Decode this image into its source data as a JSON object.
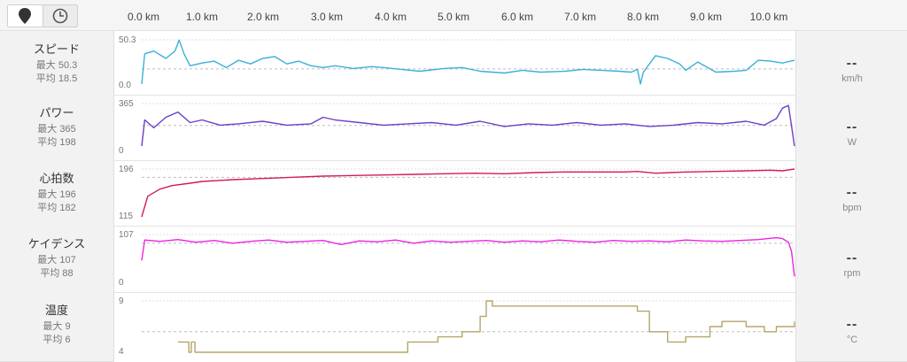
{
  "toolbar": {
    "map_icon": "map-pin-icon",
    "time_icon": "clock-icon"
  },
  "distance_axis": [
    "0.0 km",
    "1.0 km",
    "2.0 km",
    "3.0 km",
    "4.0 km",
    "5.0 km",
    "6.0 km",
    "7.0 km",
    "8.0 km",
    "9.0 km",
    "10.0 km"
  ],
  "rows": [
    {
      "id": "speed",
      "name": "スピード",
      "max_label": "最大 50.3",
      "avg_label": "平均 18.5",
      "current": "--",
      "unit": "km/h",
      "tick_top": "50.3",
      "tick_bottom": "0.0",
      "color": "#3ab0d8"
    },
    {
      "id": "power",
      "name": "パワー",
      "max_label": "最大 365",
      "avg_label": "平均 198",
      "current": "--",
      "unit": "W",
      "tick_top": "365",
      "tick_bottom": "0",
      "color": "#6a3fc8"
    },
    {
      "id": "heartrate",
      "name": "心拍数",
      "max_label": "最大 196",
      "avg_label": "平均 182",
      "current": "--",
      "unit": "bpm",
      "tick_top": "196",
      "tick_bottom": "115",
      "color": "#d21a5c"
    },
    {
      "id": "cadence",
      "name": "ケイデンス",
      "max_label": "最大 107",
      "avg_label": "平均 88",
      "current": "--",
      "unit": "rpm",
      "tick_top": "107",
      "tick_bottom": "0",
      "color": "#ee22e0"
    },
    {
      "id": "temperature",
      "name": "温度",
      "max_label": "最大 9",
      "avg_label": "平均 6",
      "current": "--",
      "unit": "°C",
      "tick_top": "9",
      "tick_bottom": "4",
      "color": "#b5a56a"
    }
  ],
  "chart_data": {
    "type": "line",
    "x_label": "km",
    "x_range": [
      0,
      10.8
    ],
    "series": [
      {
        "name": "スピード",
        "ylim": [
          0,
          50.3
        ],
        "avg": 18.5,
        "x": [
          0,
          0.05,
          0.2,
          0.4,
          0.55,
          0.62,
          0.7,
          0.8,
          1.0,
          1.2,
          1.4,
          1.6,
          1.8,
          2.0,
          2.2,
          2.4,
          2.6,
          2.8,
          3.0,
          3.2,
          3.5,
          3.8,
          4.0,
          4.3,
          4.6,
          5.0,
          5.3,
          5.6,
          6.0,
          6.3,
          6.6,
          7.0,
          7.3,
          7.6,
          7.9,
          8.1,
          8.2,
          8.25,
          8.3,
          8.5,
          8.7,
          8.9,
          9.0,
          9.2,
          9.5,
          9.8,
          10.0,
          10.2,
          10.4,
          10.6,
          10.8
        ],
        "y": [
          2,
          35,
          38,
          30,
          38,
          50,
          35,
          22,
          25,
          27,
          20,
          28,
          24,
          30,
          32,
          24,
          27,
          22,
          20,
          22,
          19,
          21,
          20,
          18,
          16,
          19,
          20,
          16,
          14,
          17,
          15,
          16,
          18,
          17,
          16,
          15,
          18,
          2,
          15,
          33,
          30,
          24,
          17,
          26,
          15,
          16,
          17,
          28,
          27,
          25,
          28
        ]
      },
      {
        "name": "パワー",
        "ylim": [
          0,
          365
        ],
        "avg": 198,
        "x": [
          0,
          0.05,
          0.2,
          0.4,
          0.6,
          0.8,
          1.0,
          1.3,
          1.6,
          2.0,
          2.4,
          2.8,
          3.0,
          3.2,
          3.6,
          4.0,
          4.4,
          4.8,
          5.2,
          5.6,
          6.0,
          6.4,
          6.8,
          7.2,
          7.6,
          8.0,
          8.4,
          8.8,
          9.2,
          9.6,
          10.0,
          10.3,
          10.5,
          10.6,
          10.7,
          10.8
        ],
        "y": [
          40,
          240,
          180,
          260,
          300,
          220,
          240,
          200,
          210,
          230,
          200,
          210,
          260,
          240,
          220,
          200,
          210,
          220,
          200,
          230,
          190,
          210,
          200,
          220,
          200,
          210,
          190,
          200,
          220,
          210,
          230,
          200,
          250,
          330,
          350,
          40
        ]
      },
      {
        "name": "心拍数",
        "ylim": [
          115,
          196
        ],
        "avg": 182,
        "x": [
          0,
          0.1,
          0.3,
          0.5,
          0.8,
          1.0,
          1.5,
          2.0,
          2.5,
          3.0,
          3.5,
          4.0,
          4.5,
          5.0,
          5.5,
          6.0,
          6.5,
          7.0,
          7.5,
          8.0,
          8.2,
          8.5,
          9.0,
          9.5,
          10.0,
          10.4,
          10.6,
          10.8
        ],
        "y": [
          115,
          150,
          162,
          168,
          172,
          175,
          178,
          180,
          182,
          184,
          185,
          186,
          187,
          188,
          189,
          188,
          190,
          191,
          191,
          191,
          192,
          189,
          191,
          192,
          193,
          194,
          193,
          196
        ]
      },
      {
        "name": "ケイデンス",
        "ylim": [
          0,
          107
        ],
        "avg": 88,
        "x": [
          0,
          0.05,
          0.3,
          0.6,
          0.9,
          1.2,
          1.5,
          1.8,
          2.1,
          2.4,
          2.7,
          3.0,
          3.3,
          3.6,
          3.9,
          4.2,
          4.5,
          4.8,
          5.1,
          5.4,
          5.7,
          6.0,
          6.3,
          6.6,
          6.9,
          7.2,
          7.5,
          7.8,
          8.1,
          8.4,
          8.7,
          9.0,
          9.3,
          9.6,
          9.9,
          10.2,
          10.5,
          10.6,
          10.7,
          10.75,
          10.8
        ],
        "y": [
          50,
          95,
          92,
          96,
          90,
          94,
          88,
          92,
          95,
          90,
          92,
          94,
          85,
          93,
          91,
          95,
          88,
          93,
          90,
          92,
          94,
          90,
          93,
          91,
          95,
          92,
          90,
          94,
          92,
          93,
          91,
          95,
          93,
          92,
          94,
          96,
          100,
          98,
          90,
          70,
          15
        ]
      },
      {
        "name": "温度",
        "ylim": [
          4,
          9
        ],
        "avg": 6,
        "x": [
          0.6,
          0.7,
          0.78,
          0.82,
          0.88,
          3.6,
          3.7,
          4.4,
          4.9,
          5.3,
          5.6,
          5.7,
          5.8,
          7.8,
          8.2,
          8.4,
          8.7,
          9.0,
          9.4,
          9.6,
          10.0,
          10.3,
          10.5,
          10.8
        ],
        "y": [
          5,
          5,
          4,
          5,
          4,
          4,
          4,
          5,
          5.5,
          6,
          7.5,
          9,
          8.5,
          8.5,
          8,
          6,
          5,
          5.5,
          6.5,
          7,
          6.5,
          6,
          6.5,
          7
        ]
      }
    ]
  }
}
